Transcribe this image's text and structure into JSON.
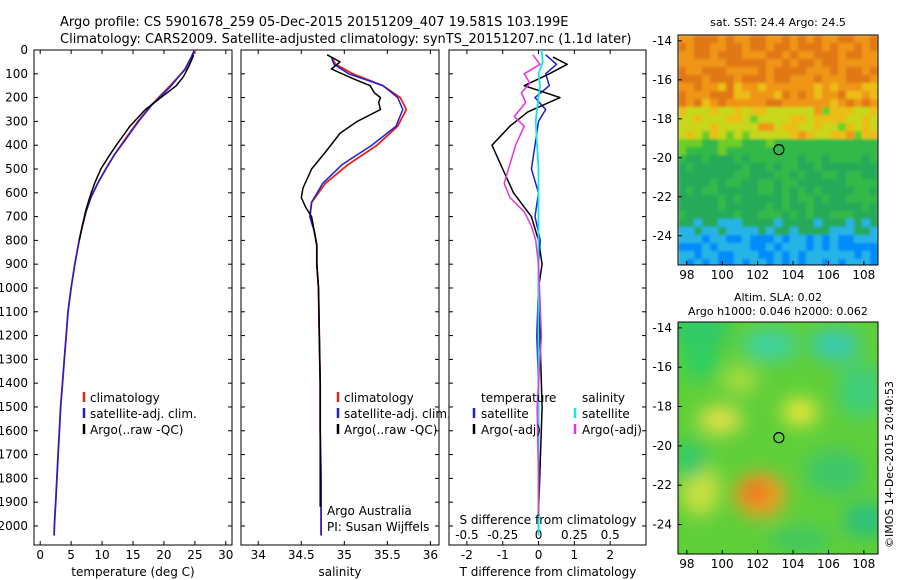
{
  "header": {
    "line1": "Argo profile: CS 5901678_259 05-Dec-2015 20151209_407 19.581S 103.199E",
    "line2": "Climatology: CARS2009. Satellite-adjusted climatology: synTS_20151207.nc (1.1d later)"
  },
  "credit": "©IMOS 14-Dec-2015 20:40:53",
  "colors": {
    "climatology": "#e8231c",
    "satellite_adj": "#1f1fcf",
    "argo": "#000000",
    "sal_satellite": "#14e6ea",
    "sal_argo": "#e433e0"
  },
  "chart_data": [
    {
      "type": "line",
      "panel": "temperature",
      "xlabel": "temperature (deg C)",
      "ylabel": "",
      "xlim": [
        -1,
        31
      ],
      "ylim": [
        2080,
        0
      ],
      "xticks": [
        0,
        5,
        10,
        15,
        20,
        25,
        30
      ],
      "yticks": [
        0,
        100,
        200,
        300,
        400,
        500,
        600,
        700,
        800,
        900,
        1000,
        1100,
        1200,
        1300,
        1400,
        1500,
        1600,
        1700,
        1800,
        1900,
        2000
      ],
      "legend": [
        "climatology",
        "satellite-adj. clim.",
        "Argo(..raw -QC)"
      ],
      "series": [
        {
          "name": "climatology",
          "color": "#e8231c",
          "width": 1.8,
          "x": [
            25.0,
            24.5,
            23.5,
            21.0,
            18.0,
            15.8,
            13.6,
            12.0,
            10.6,
            9.3,
            8.2,
            7.4,
            6.8,
            6.3,
            5.6,
            5.0,
            4.5,
            4.2,
            3.9,
            3.6,
            3.3,
            3.1,
            2.9,
            2.7,
            2.6,
            2.5,
            2.4,
            2.3,
            2.25
          ],
          "y": [
            0,
            30,
            80,
            150,
            230,
            300,
            380,
            440,
            500,
            560,
            620,
            680,
            740,
            800,
            900,
            1000,
            1100,
            1200,
            1300,
            1400,
            1500,
            1600,
            1700,
            1800,
            1850,
            1900,
            1950,
            2000,
            2040
          ]
        },
        {
          "name": "satellite-adj. clim.",
          "color": "#1f1fcf",
          "width": 1.5,
          "x": [
            24.9,
            24.4,
            23.4,
            21.2,
            18.1,
            15.9,
            13.7,
            12.0,
            10.6,
            9.3,
            8.2,
            7.4,
            6.8,
            6.3,
            5.6,
            5.0,
            4.5,
            4.2,
            3.9,
            3.6,
            3.3,
            3.1,
            2.9,
            2.7,
            2.6,
            2.5,
            2.4,
            2.3,
            2.25
          ],
          "y": [
            0,
            30,
            80,
            150,
            230,
            300,
            380,
            440,
            500,
            560,
            620,
            680,
            740,
            800,
            900,
            1000,
            1100,
            1200,
            1300,
            1400,
            1500,
            1600,
            1700,
            1800,
            1850,
            1900,
            1950,
            2000,
            2040
          ]
        },
        {
          "name": "Argo(..raw -QC)",
          "color": "#000000",
          "width": 1.5,
          "x": [
            24.8,
            24.5,
            24.0,
            23.2,
            22.0,
            20.5,
            19.0,
            17.0,
            14.5,
            12.3,
            11.0,
            9.8,
            8.8,
            8.0,
            7.3,
            6.8,
            6.3
          ],
          "y": [
            20,
            40,
            70,
            110,
            150,
            180,
            210,
            250,
            320,
            400,
            450,
            500,
            560,
            620,
            680,
            740,
            800
          ]
        }
      ]
    },
    {
      "type": "line",
      "panel": "salinity",
      "xlabel": "salinity",
      "ylabel": "",
      "xlim": [
        33.8,
        36.1
      ],
      "ylim": [
        2080,
        0
      ],
      "xticks": [
        34,
        34.5,
        35,
        35.5,
        36
      ],
      "legend": [
        "climatology",
        "satellite-adj. clim.",
        "Argo(..raw -QC)"
      ],
      "annotation": [
        "Argo Australia",
        "PI: Susan Wijffels"
      ],
      "series": [
        {
          "name": "climatology",
          "color": "#e8231c",
          "width": 1.8,
          "x": [
            34.85,
            34.9,
            35.1,
            35.45,
            35.65,
            35.72,
            35.62,
            35.38,
            35.05,
            34.78,
            34.62,
            34.6,
            34.65,
            34.68,
            34.68,
            34.7,
            34.71,
            34.72,
            34.72,
            34.73,
            34.73,
            34.73,
            34.73
          ],
          "y": [
            30,
            60,
            100,
            150,
            200,
            250,
            320,
            400,
            480,
            560,
            640,
            700,
            760,
            820,
            900,
            1000,
            1200,
            1400,
            1600,
            1800,
            1900,
            2000,
            2040
          ]
        },
        {
          "name": "satellite-adj. clim.",
          "color": "#1f1fcf",
          "width": 1.5,
          "x": [
            34.85,
            34.88,
            35.05,
            35.45,
            35.62,
            35.68,
            35.6,
            35.32,
            34.98,
            34.75,
            34.62,
            34.6,
            34.65,
            34.68,
            34.68,
            34.7,
            34.71,
            34.72,
            34.72,
            34.73,
            34.73,
            34.73,
            34.73
          ],
          "y": [
            30,
            60,
            100,
            150,
            200,
            250,
            320,
            400,
            480,
            560,
            640,
            700,
            760,
            820,
            900,
            1000,
            1200,
            1400,
            1600,
            1800,
            1900,
            2000,
            2040
          ]
        },
        {
          "name": "Argo(..raw -QC)",
          "color": "#000000",
          "width": 1.5,
          "x": [
            34.8,
            34.95,
            34.85,
            35.1,
            35.3,
            35.35,
            35.42,
            35.4,
            35.42,
            35.15,
            34.95,
            34.8,
            34.62,
            34.52,
            34.5,
            34.55,
            34.62,
            34.65,
            34.68,
            34.68,
            34.7,
            34.71,
            34.72,
            34.72,
            34.72,
            34.72
          ],
          "y": [
            20,
            50,
            80,
            120,
            150,
            180,
            200,
            220,
            250,
            300,
            350,
            420,
            500,
            580,
            620,
            660,
            700,
            760,
            820,
            900,
            1000,
            1200,
            1400,
            1600,
            1800,
            1920
          ]
        }
      ]
    },
    {
      "type": "line",
      "panel": "differences",
      "xlabel": "T difference from climatology",
      "xlabel_top": "S difference from climatology",
      "xlim": [
        -2.5,
        3.0
      ],
      "ylim": [
        2080,
        0
      ],
      "xticks": [
        -2,
        -1,
        0,
        1,
        2
      ],
      "xticks_S": [
        -0.5,
        -0.25,
        0,
        0.25,
        0.5
      ],
      "legend": [
        "temperature",
        "satellite",
        "Argo(-adj)",
        "salinity",
        "satellite",
        "Argo(-adj)"
      ],
      "series": [
        {
          "name": "satellite",
          "group": "temperature",
          "color": "#1f1fcf",
          "width": 1.5,
          "x": [
            0.2,
            0.5,
            0.2,
            0.3,
            -0.1,
            0.2,
            0.0,
            -0.1,
            -0.2,
            0.0,
            -0.1,
            0.05,
            0.0,
            0.0,
            -0.05,
            0.0,
            0.0,
            0.0,
            0.0,
            0.0
          ],
          "y": [
            20,
            60,
            100,
            150,
            200,
            250,
            300,
            400,
            500,
            600,
            700,
            800,
            900,
            1000,
            1200,
            1400,
            1600,
            1800,
            1950,
            2040
          ]
        },
        {
          "name": "Argo(-adj)",
          "group": "temperature",
          "color": "#000000",
          "width": 1.5,
          "x": [
            0.4,
            0.8,
            0.3,
            -0.4,
            0.6,
            -0.3,
            -0.8,
            -1.3,
            -1.0,
            -0.7,
            -0.2,
            0.0,
            0.1,
            0.0,
            0.1,
            0.0
          ],
          "y": [
            30,
            60,
            100,
            150,
            200,
            260,
            320,
            400,
            500,
            600,
            700,
            800,
            900,
            1000,
            1500,
            1950
          ]
        },
        {
          "name": "satellite",
          "group": "salinity",
          "color": "#14e6ea",
          "width": 1.8,
          "x": [
            0.02,
            0.03,
            0.0,
            0.01,
            0.0,
            -0.02,
            -0.01,
            0.0,
            0.0,
            0.0,
            0.0,
            0.0,
            0.0
          ],
          "y": [
            0,
            50,
            100,
            150,
            200,
            300,
            400,
            500,
            600,
            800,
            1000,
            1500,
            2040
          ]
        },
        {
          "name": "Argo(-adj)",
          "group": "salinity",
          "color": "#e433e0",
          "width": 1.5,
          "x": [
            -0.04,
            0.01,
            -0.1,
            -0.06,
            -0.12,
            -0.09,
            -0.17,
            -0.1,
            -0.16,
            -0.2,
            -0.24,
            -0.2,
            -0.1,
            -0.05,
            -0.02,
            0.0,
            0.02,
            -0.01,
            0.0,
            0.0
          ],
          "y": [
            20,
            60,
            100,
            140,
            180,
            220,
            280,
            320,
            400,
            480,
            560,
            620,
            680,
            740,
            800,
            900,
            1200,
            1500,
            1800,
            1950
          ]
        }
      ]
    },
    {
      "type": "heatmap",
      "panel": "sst-map",
      "title": "sat. SST: 24.4  Argo: 24.5",
      "xlim": [
        97.5,
        108.8
      ],
      "ylim": [
        -25.5,
        -13.7
      ],
      "xticks": [
        98,
        100,
        102,
        104,
        106,
        108
      ],
      "yticks": [
        -14,
        -16,
        -18,
        -20,
        -22,
        -24
      ],
      "marker": {
        "lon": 103.2,
        "lat": -19.58
      }
    },
    {
      "type": "heatmap",
      "panel": "sla-map",
      "title": [
        "Altim. SLA: 0.02",
        "Argo h1000: 0.046 h2000: 0.062"
      ],
      "xlim": [
        97.5,
        108.8
      ],
      "ylim": [
        -25.5,
        -13.7
      ],
      "xticks": [
        98,
        100,
        102,
        104,
        106,
        108
      ],
      "yticks": [
        -14,
        -16,
        -18,
        -20,
        -22,
        -24
      ],
      "marker": {
        "lon": 103.2,
        "lat": -19.58
      }
    }
  ]
}
